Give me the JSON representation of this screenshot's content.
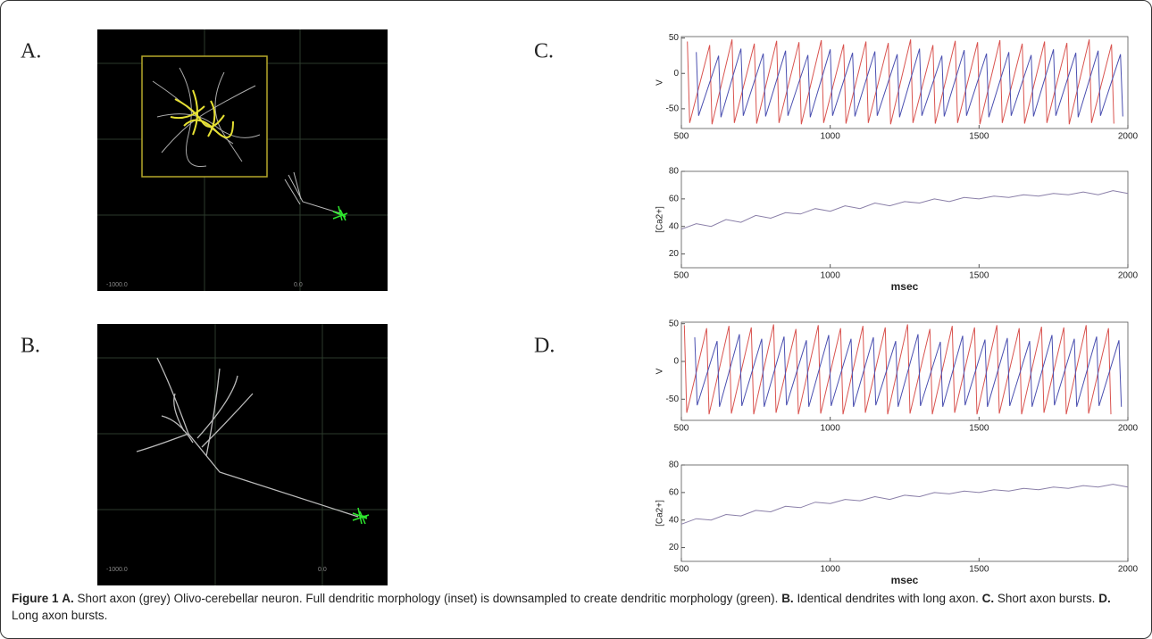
{
  "panel_labels": [
    "A.",
    "B.",
    "C.",
    "D."
  ],
  "morphology_panels": [
    {
      "axis_labels": [
        "-1000.0",
        "0.0"
      ]
    },
    {
      "axis_labels": [
        "-1000.0",
        "0.0"
      ]
    }
  ],
  "chart_data": [
    {
      "type": "line",
      "ylabel": "V",
      "xlim": [
        500,
        2000
      ],
      "xticks": [
        500,
        1000,
        1500,
        2000
      ],
      "ylim": [
        -78,
        52
      ],
      "yticks": [
        -50,
        0,
        50
      ],
      "series": [
        {
          "color": "#d9534f",
          "x": [
            520,
            528,
            595,
            603,
            670,
            678,
            745,
            753,
            820,
            828,
            895,
            903,
            970,
            978,
            1045,
            1053,
            1120,
            1128,
            1195,
            1203,
            1270,
            1278,
            1345,
            1353,
            1420,
            1428,
            1495,
            1503,
            1570,
            1578,
            1645,
            1653,
            1720,
            1728,
            1795,
            1803,
            1870,
            1878,
            1945,
            1953
          ],
          "values": [
            45,
            -70,
            40,
            -72,
            48,
            -70,
            42,
            -71,
            46,
            -70,
            44,
            -72,
            47,
            -70,
            41,
            -71,
            45,
            -70,
            43,
            -72,
            48,
            -70,
            40,
            -71,
            46,
            -70,
            44,
            -72,
            47,
            -70,
            42,
            -71,
            45,
            -70,
            43,
            -72,
            48,
            -70,
            41,
            -71
          ]
        },
        {
          "color": "#4a4fb0",
          "x": [
            550,
            558,
            625,
            633,
            700,
            708,
            775,
            783,
            850,
            858,
            925,
            933,
            1000,
            1008,
            1075,
            1083,
            1150,
            1158,
            1225,
            1233,
            1300,
            1308,
            1375,
            1383,
            1450,
            1458,
            1525,
            1533,
            1600,
            1608,
            1675,
            1683,
            1750,
            1758,
            1825,
            1833,
            1900,
            1908,
            1975,
            1983
          ],
          "values": [
            30,
            -60,
            25,
            -62,
            35,
            -60,
            28,
            -61,
            32,
            -60,
            26,
            -62,
            34,
            -60,
            29,
            -61,
            31,
            -60,
            27,
            -62,
            35,
            -60,
            25,
            -61,
            33,
            -60,
            28,
            -62,
            30,
            -60,
            26,
            -61,
            34,
            -60,
            29,
            -62,
            32,
            -60,
            27,
            -61
          ]
        }
      ]
    },
    {
      "type": "line",
      "ylabel": "[Ca2+]",
      "xlabel": "msec",
      "xlim": [
        500,
        2000
      ],
      "xticks": [
        500,
        1000,
        1500,
        2000
      ],
      "ylim": [
        10,
        80
      ],
      "yticks": [
        20,
        40,
        60,
        80
      ],
      "series": [
        {
          "color": "#8a7fa8",
          "x": [
            500,
            550,
            600,
            650,
            700,
            750,
            800,
            850,
            900,
            950,
            1000,
            1050,
            1100,
            1150,
            1200,
            1250,
            1300,
            1350,
            1400,
            1450,
            1500,
            1550,
            1600,
            1650,
            1700,
            1750,
            1800,
            1850,
            1900,
            1950,
            2000
          ],
          "values": [
            38,
            42,
            40,
            45,
            43,
            48,
            46,
            50,
            49,
            53,
            51,
            55,
            53,
            57,
            55,
            58,
            57,
            60,
            58,
            61,
            60,
            62,
            61,
            63,
            62,
            64,
            63,
            65,
            63,
            66,
            64
          ]
        }
      ]
    },
    {
      "type": "line",
      "ylabel": "V",
      "xlim": [
        500,
        2000
      ],
      "xticks": [
        500,
        1000,
        1500,
        2000
      ],
      "ylim": [
        -78,
        52
      ],
      "yticks": [
        -50,
        0,
        50
      ],
      "series": [
        {
          "color": "#d9534f",
          "x": [
            510,
            518,
            585,
            593,
            660,
            668,
            735,
            743,
            810,
            818,
            885,
            893,
            960,
            968,
            1035,
            1043,
            1110,
            1118,
            1185,
            1193,
            1260,
            1268,
            1335,
            1343,
            1410,
            1418,
            1485,
            1493,
            1560,
            1568,
            1635,
            1643,
            1710,
            1718,
            1785,
            1793,
            1860,
            1868,
            1935,
            1943
          ],
          "values": [
            48,
            -68,
            44,
            -70,
            47,
            -69,
            45,
            -70,
            49,
            -68,
            43,
            -70,
            48,
            -69,
            44,
            -70,
            47,
            -68,
            45,
            -70,
            49,
            -69,
            43,
            -70,
            47,
            -68,
            45,
            -70,
            48,
            -69,
            44,
            -70,
            46,
            -68,
            45,
            -70,
            48,
            -69,
            44,
            -70
          ]
        },
        {
          "color": "#4a4fb0",
          "x": [
            545,
            553,
            620,
            628,
            695,
            703,
            770,
            778,
            845,
            853,
            920,
            928,
            995,
            1003,
            1070,
            1078,
            1145,
            1153,
            1220,
            1228,
            1295,
            1303,
            1370,
            1378,
            1445,
            1453,
            1520,
            1528,
            1595,
            1603,
            1670,
            1678,
            1745,
            1753,
            1820,
            1828,
            1895,
            1903,
            1970,
            1978
          ],
          "values": [
            32,
            -58,
            27,
            -60,
            36,
            -59,
            30,
            -60,
            33,
            -58,
            28,
            -60,
            35,
            -59,
            30,
            -60,
            32,
            -58,
            27,
            -60,
            36,
            -59,
            26,
            -60,
            34,
            -58,
            29,
            -60,
            31,
            -59,
            27,
            -60,
            35,
            -58,
            30,
            -60,
            33,
            -59,
            28,
            -60
          ]
        }
      ]
    },
    {
      "type": "line",
      "ylabel": "[Ca2+]",
      "xlabel": "msec",
      "xlim": [
        500,
        2000
      ],
      "xticks": [
        500,
        1000,
        1500,
        2000
      ],
      "ylim": [
        10,
        80
      ],
      "yticks": [
        20,
        40,
        60,
        80
      ],
      "series": [
        {
          "color": "#8a7fa8",
          "x": [
            500,
            550,
            600,
            650,
            700,
            750,
            800,
            850,
            900,
            950,
            1000,
            1050,
            1100,
            1150,
            1200,
            1250,
            1300,
            1350,
            1400,
            1450,
            1500,
            1550,
            1600,
            1650,
            1700,
            1750,
            1800,
            1850,
            1900,
            1950,
            2000
          ],
          "values": [
            37,
            41,
            40,
            44,
            43,
            47,
            46,
            50,
            49,
            53,
            52,
            55,
            54,
            57,
            55,
            58,
            57,
            60,
            59,
            61,
            60,
            62,
            61,
            63,
            62,
            64,
            63,
            65,
            64,
            66,
            64
          ]
        }
      ]
    }
  ],
  "caption": {
    "figure_label": "Figure 1",
    "parts": [
      {
        "label": "A.",
        "text": "Short axon (grey) Olivo-cerebellar neuron. Full dendritic morphology (inset) is downsampled to create dendritic morphology (green)."
      },
      {
        "label": "B.",
        "text": "Identical dendrites with long axon."
      },
      {
        "label": "C.",
        "text": "Short axon bursts."
      },
      {
        "label": "D.",
        "text": "Long axon bursts."
      }
    ]
  }
}
